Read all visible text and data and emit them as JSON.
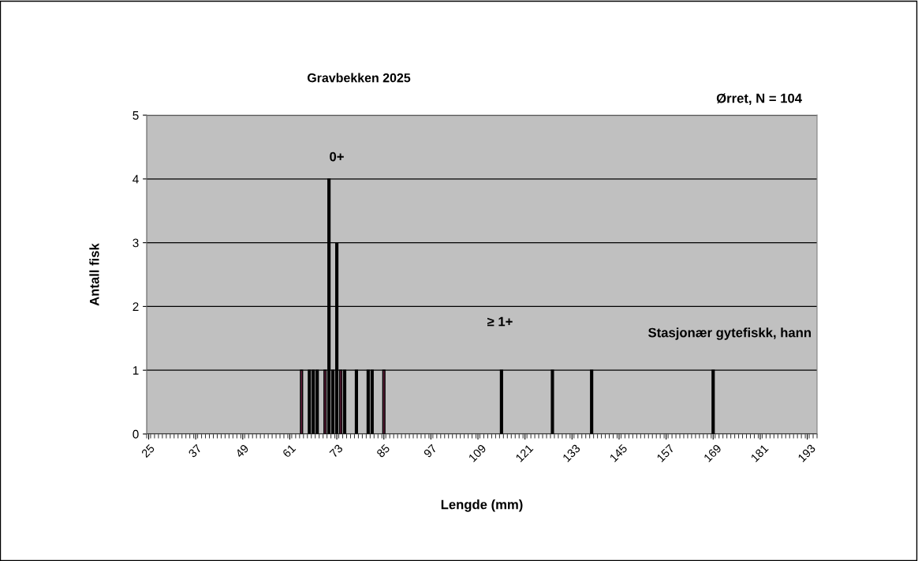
{
  "chart_data": {
    "type": "bar",
    "title": "Gravbekken 2025",
    "xlabel": "Lengde (mm)",
    "ylabel": "Antall fisk",
    "annotations": [
      "Ørret, N = 104",
      "0+",
      "≥ 1+",
      "Stasjonær gytefiskk, hann"
    ],
    "x": [
      64,
      66,
      67,
      68,
      70,
      71,
      72,
      73,
      74,
      75,
      78,
      81,
      82,
      85,
      115,
      128,
      138,
      169
    ],
    "values": [
      1,
      1,
      1,
      1,
      1,
      4,
      1,
      3,
      1,
      1,
      1,
      1,
      1,
      1,
      1,
      1,
      1,
      1
    ],
    "colors": [
      "#6b2040",
      "#000000",
      "#000000",
      "#000000",
      "#6b2040",
      "#000000",
      "#000000",
      "#000000",
      "#6b2040",
      "#000000",
      "#000000",
      "#000000",
      "#000000",
      "#6b2040",
      "#000000",
      "#000000",
      "#000000",
      "#000000"
    ],
    "xlim": [
      24.5,
      195.5
    ],
    "xticks": [
      25,
      37,
      49,
      61,
      73,
      85,
      97,
      109,
      121,
      133,
      145,
      157,
      169,
      181,
      193
    ],
    "ylim": [
      0,
      5
    ],
    "yticks": [
      0,
      1,
      2,
      3,
      4,
      5
    ],
    "grid": "y"
  }
}
